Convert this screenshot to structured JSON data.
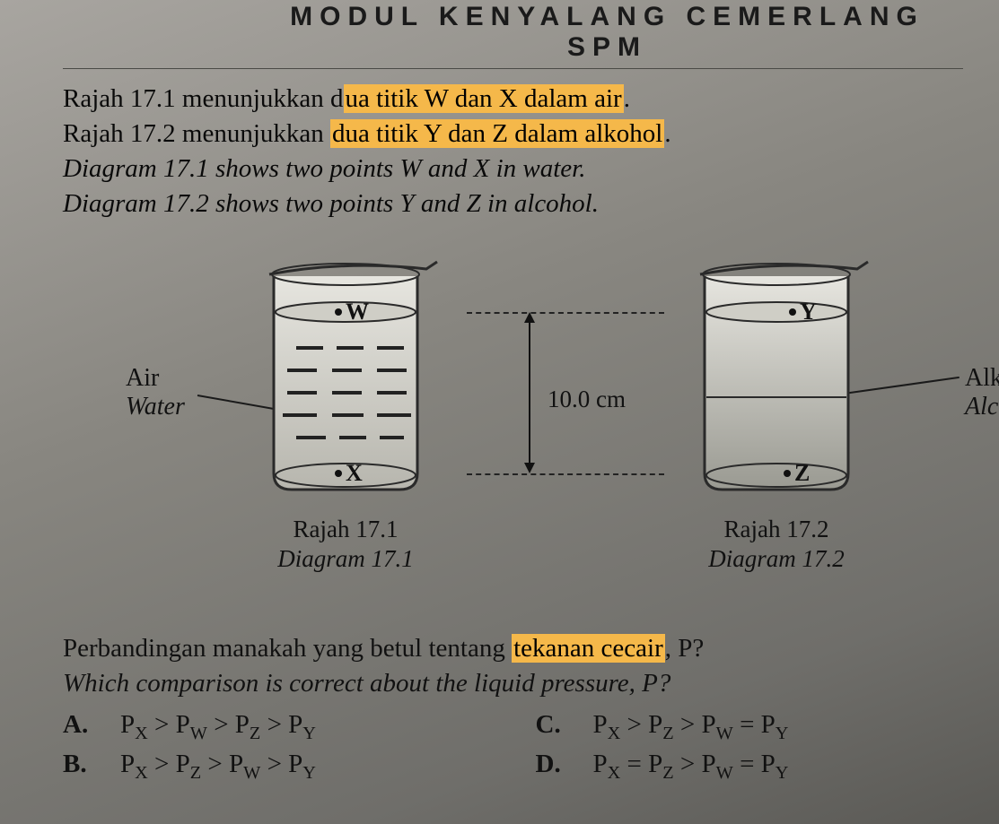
{
  "header": {
    "title": "MODUL KENYALANG CEMERLANG SPM"
  },
  "intro": {
    "bm1_a": "Rajah 17.1 menunjukkan d",
    "bm1_hl": "ua titik W dan X dalam air",
    "bm1_b": ".",
    "bm2_a": "Rajah 17.2 menunjukkan ",
    "bm2_hl": "dua titik Y dan Z dalam alkohol",
    "bm2_b": ".",
    "en1": "Diagram 17.1 shows two points W and X in water.",
    "en2": "Diagram 17.2 shows two points Y and Z in alcohol."
  },
  "figure": {
    "left": {
      "caption_bm": "Rajah 17.1",
      "caption_en": "Diagram 17.1",
      "liquid_label_bm": "Air",
      "liquid_label_en": "Water",
      "point_top": "W",
      "point_bottom": "X",
      "beaker_style": {
        "stroke": "#2a2a2a",
        "fill_top": "#e6e5df",
        "fill_bottom": "#b7b6ae",
        "liquid_surface": "#cfcec6",
        "dash_color": "#222222"
      }
    },
    "right": {
      "caption_bm": "Rajah 17.2",
      "caption_en": "Diagram 17.2",
      "liquid_label_bm": "Alkohol",
      "liquid_label_en": "Alcohol",
      "point_top": "Y",
      "point_bottom": "Z",
      "beaker_style": {
        "stroke": "#2a2a2a",
        "fill_top": "#e6e5df",
        "fill_bottom": "#9a9a92",
        "liquid_surface": "#cfcec6"
      }
    },
    "dimension": {
      "label": "10.0 cm",
      "arrow_color": "#111111",
      "dash_color": "#222222"
    }
  },
  "question": {
    "bm_a": "Perbandingan manakah yang betul tentang ",
    "bm_hl": "tekanan cecair",
    "bm_b": ", P?",
    "en": "Which comparison is correct about the liquid pressure, P?"
  },
  "options": {
    "A": {
      "letter": "A.",
      "expr_html": "P<span class='sub'>X</span> > P<span class='sub'>W</span> > P<span class='sub'>Z</span> > P<span class='sub'>Y</span>"
    },
    "B": {
      "letter": "B.",
      "expr_html": "P<span class='sub'>X</span> > P<span class='sub'>Z</span> > P<span class='sub'>W</span> > P<span class='sub'>Y</span>"
    },
    "C": {
      "letter": "C.",
      "expr_html": "P<span class='sub'>X</span> > P<span class='sub'>Z</span> > P<span class='sub'>W</span> = P<span class='sub'>Y</span>"
    },
    "D": {
      "letter": "D.",
      "expr_html": "P<span class='sub'>X</span> = P<span class='sub'>Z</span> > P<span class='sub'>W</span> = P<span class='sub'>Y</span>"
    }
  },
  "colors": {
    "highlight": "#f5b84a",
    "text": "#111111",
    "page_bg_top": "#a8a5a0",
    "page_bg_bottom": "#5a5955"
  }
}
